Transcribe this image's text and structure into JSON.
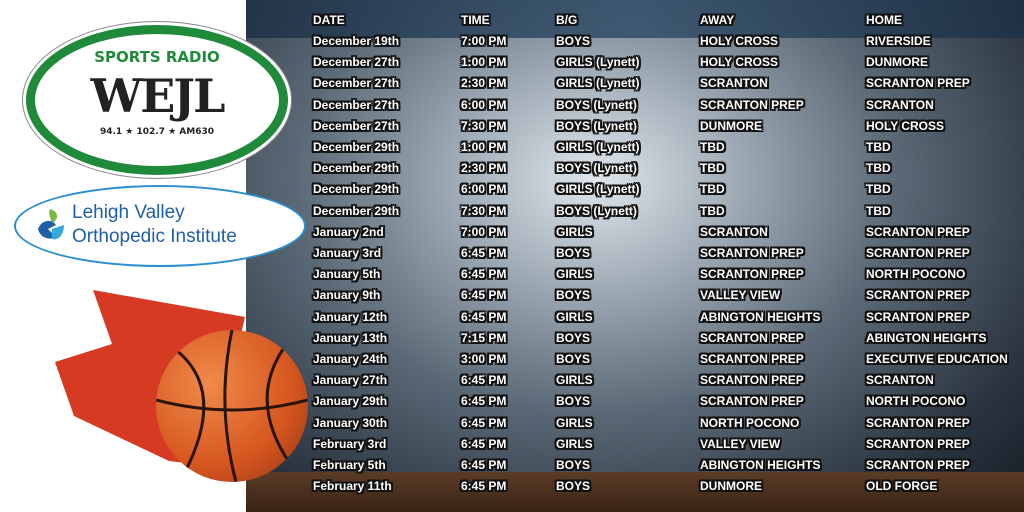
{
  "sponsors": {
    "wejl": {
      "top": "SPORTS RADIO",
      "name": "WEJL",
      "freqs": "94.1 ★ 102.7 ★ AM630"
    },
    "lvoi": {
      "line1": "Lehigh Valley",
      "line2": "Orthopedic Institute"
    }
  },
  "colors": {
    "wejl_green": "#1e8a3a",
    "lvoi_blue": "#1f5fa5",
    "splash_red": "#d63a22"
  },
  "schedule": {
    "headers": [
      "DATE",
      "TIME",
      "B/G",
      "AWAY",
      "HOME"
    ],
    "rows": [
      [
        "December 19th",
        "7:00 PM",
        "BOYS",
        "HOLY CROSS",
        "RIVERSIDE"
      ],
      [
        "December 27th",
        "1:00 PM",
        "GIRLS (Lynett)",
        "HOLY CROSS",
        "DUNMORE"
      ],
      [
        "December 27th",
        "2:30 PM",
        "GIRLS (Lynett)",
        "SCRANTON",
        "SCRANTON PREP"
      ],
      [
        "December 27th",
        "6:00 PM",
        "BOYS (Lynett)",
        "SCRANTON PREP",
        "SCRANTON"
      ],
      [
        "December 27th",
        "7:30 PM",
        "BOYS (Lynett)",
        "DUNMORE",
        "HOLY CROSS"
      ],
      [
        "December 29th",
        "1:00 PM",
        "GIRLS (Lynett)",
        "TBD",
        "TBD"
      ],
      [
        "December 29th",
        "2:30 PM",
        "BOYS (Lynett)",
        "TBD",
        "TBD"
      ],
      [
        "December 29th",
        "6:00 PM",
        "GIRLS (Lynett)",
        "TBD",
        "TBD"
      ],
      [
        "December 29th",
        "7:30 PM",
        "BOYS (Lynett)",
        "TBD",
        "TBD"
      ],
      [
        "January 2nd",
        "7:00 PM",
        "GIRLS",
        "SCRANTON",
        "SCRANTON PREP"
      ],
      [
        "January 3rd",
        "6:45 PM",
        "BOYS",
        "SCRANTON PREP",
        "SCRANTON PREP"
      ],
      [
        "January 5th",
        "6:45 PM",
        "GIRLS",
        "SCRANTON PREP",
        "NORTH POCONO"
      ],
      [
        "January 9th",
        "6:45 PM",
        "BOYS",
        "VALLEY VIEW",
        "SCRANTON PREP"
      ],
      [
        "January 12th",
        "6:45 PM",
        "GIRLS",
        "ABINGTON HEIGHTS",
        "SCRANTON PREP"
      ],
      [
        "January 13th",
        "7:15 PM",
        "BOYS",
        "SCRANTON PREP",
        "ABINGTON HEIGHTS"
      ],
      [
        "January 24th",
        "3:00 PM",
        "BOYS",
        "SCRANTON PREP",
        "EXECUTIVE EDUCATION"
      ],
      [
        "January 27th",
        "6:45 PM",
        "GIRLS",
        "SCRANTON PREP",
        "SCRANTON"
      ],
      [
        "January 29th",
        "6:45 PM",
        "BOYS",
        "SCRANTON PREP",
        "NORTH POCONO"
      ],
      [
        "January 30th",
        "6:45 PM",
        "GIRLS",
        "NORTH POCONO",
        "SCRANTON PREP"
      ],
      [
        "February 3rd",
        "6:45 PM",
        "GIRLS",
        "VALLEY VIEW",
        "SCRANTON PREP"
      ],
      [
        "February 5th",
        "6:45 PM",
        "BOYS",
        "ABINGTON HEIGHTS",
        "SCRANTON PREP"
      ],
      [
        "February 11th",
        "6:45 PM",
        "BOYS",
        "DUNMORE",
        "OLD FORGE"
      ]
    ]
  }
}
